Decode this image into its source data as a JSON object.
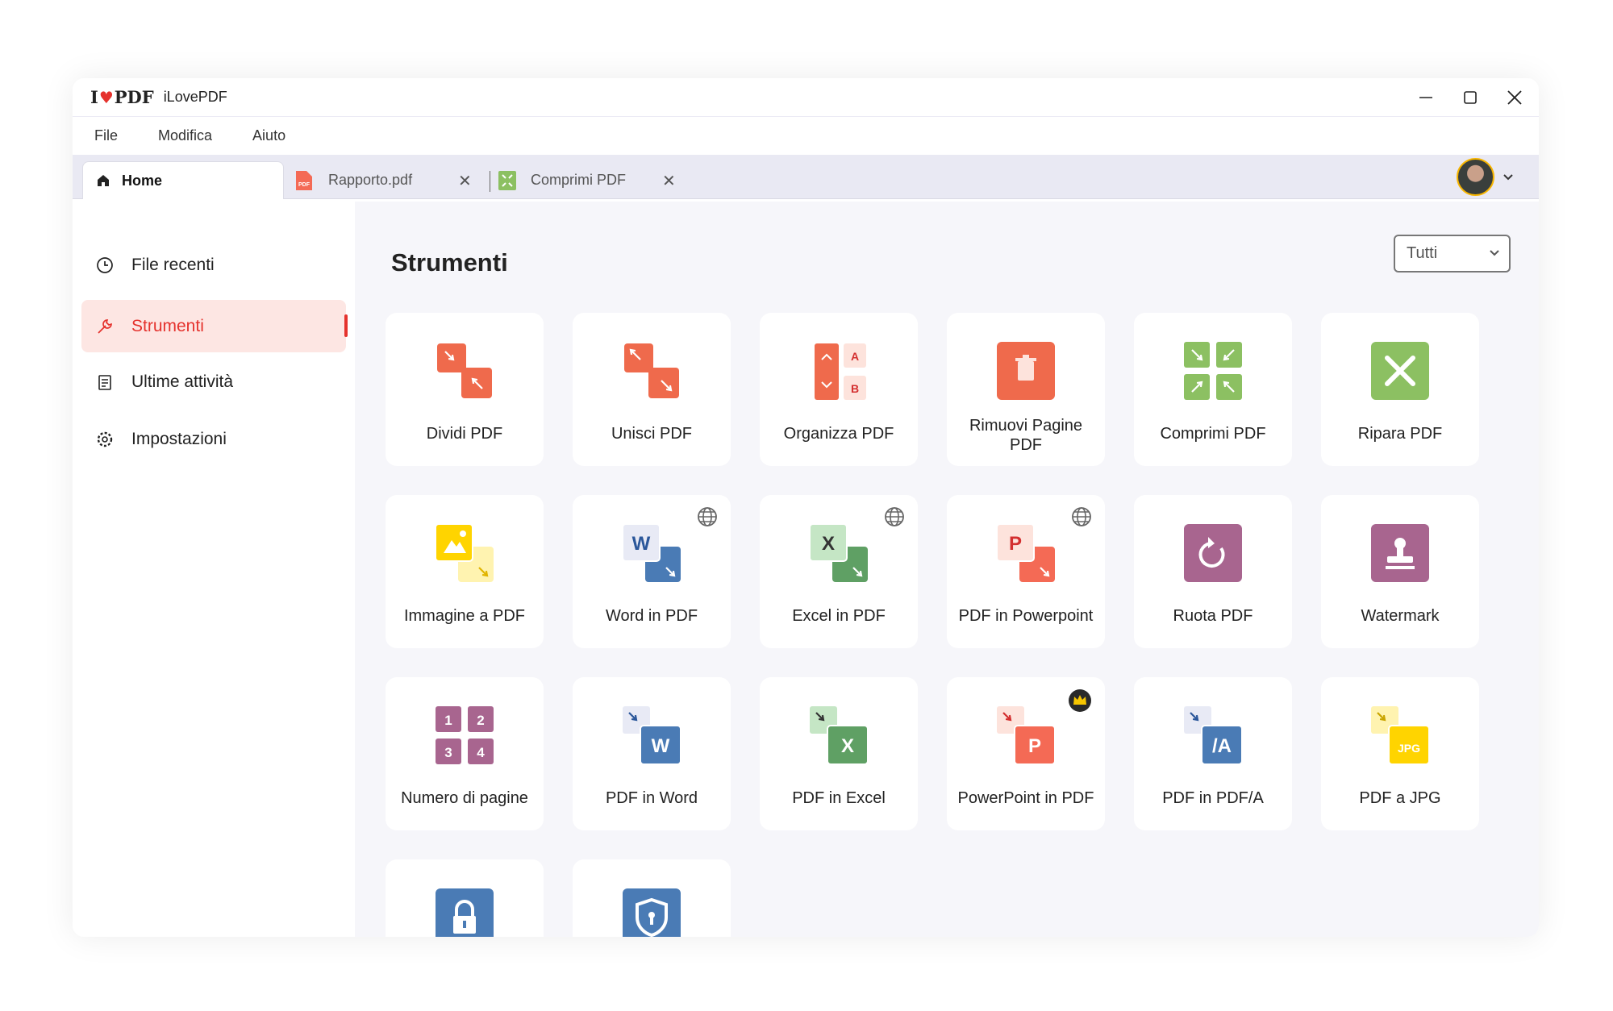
{
  "window": {
    "logo_text": "I♥PDF",
    "app_name": "iLovePDF"
  },
  "menu": [
    "File",
    "Modifica",
    "Aiuto"
  ],
  "tabs": [
    {
      "label": "Home",
      "icon": "home-icon"
    },
    {
      "label": "Rapporto.pdf",
      "icon": "pdf-file-icon"
    },
    {
      "label": "Comprimi PDF",
      "icon": "compress-icon"
    }
  ],
  "sidebar": {
    "items": [
      {
        "label": "File recenti",
        "icon": "clock-icon"
      },
      {
        "label": "Strumenti",
        "icon": "wrench-icon",
        "selected": true
      },
      {
        "label": "Ultime attività",
        "icon": "clipboard-icon"
      },
      {
        "label": "Impostazioni",
        "icon": "gear-icon"
      }
    ]
  },
  "main": {
    "title": "Strumenti",
    "filter": "Tutti"
  },
  "colors": {
    "accent": "#e5322d",
    "red": "#ef6a4c",
    "green": "#8cc062",
    "purple": "#a8658f",
    "blue": "#4a7bb5"
  },
  "tools": [
    {
      "label": "Dividi PDF",
      "icon": "split-icon",
      "kind": "split"
    },
    {
      "label": "Unisci PDF",
      "icon": "merge-icon",
      "kind": "merge"
    },
    {
      "label": "Organizza PDF",
      "icon": "organize-icon",
      "kind": "organize"
    },
    {
      "label": "Rimuovi Pagine PDF",
      "icon": "trash-icon",
      "kind": "trash"
    },
    {
      "label": "Comprimi PDF",
      "icon": "compress-icon",
      "kind": "compress"
    },
    {
      "label": "Ripara PDF",
      "icon": "repair-icon",
      "kind": "repair"
    },
    {
      "label": "Immagine a PDF",
      "icon": "image-to-pdf-icon",
      "kind": "in",
      "light": "#ffd400",
      "dark": "#fff3b0",
      "letter": "img",
      "lc": "#fff"
    },
    {
      "label": "Word in PDF",
      "icon": "word-to-pdf-icon",
      "kind": "in",
      "light": "#e8eaf5",
      "dark": "#4a7bb5",
      "letter": "W",
      "lc": "#2b579a",
      "badge": "globe"
    },
    {
      "label": "Excel in PDF",
      "icon": "excel-to-pdf-icon",
      "kind": "in",
      "light": "#c5e6c5",
      "dark": "#5fa064",
      "letter": "X",
      "lc": "#333",
      "badge": "globe"
    },
    {
      "label": "PDF in Powerpoint",
      "icon": "pdf-to-powerpoint-icon",
      "kind": "in",
      "light": "#fde3dc",
      "dark": "#f46a55",
      "letter": "P",
      "lc": "#d32f2f",
      "badge": "globe"
    },
    {
      "label": "Ruota PDF",
      "icon": "rotate-icon",
      "kind": "rotate"
    },
    {
      "label": "Watermark",
      "icon": "watermark-icon",
      "kind": "stamp"
    },
    {
      "label": "Numero di pagine",
      "icon": "page-numbers-icon",
      "kind": "numbers"
    },
    {
      "label": "PDF in Word",
      "icon": "pdf-to-word-icon",
      "kind": "out",
      "light": "#e8eaf5",
      "dark": "#4a7bb5",
      "letter": "W",
      "ac": "#2b579a"
    },
    {
      "label": "PDF in Excel",
      "icon": "pdf-to-excel-icon",
      "kind": "out",
      "light": "#c5e6c5",
      "dark": "#5fa064",
      "letter": "X",
      "ac": "#333"
    },
    {
      "label": "PowerPoint in PDF",
      "icon": "powerpoint-to-pdf-icon",
      "kind": "out",
      "light": "#fde3dc",
      "dark": "#f46a55",
      "letter": "P",
      "ac": "#d32f2f",
      "badge": "crown"
    },
    {
      "label": "PDF in PDF/A",
      "icon": "pdf-to-pdfa-icon",
      "kind": "out",
      "light": "#e8eaf5",
      "dark": "#4a7bb5",
      "letter": "/A",
      "ac": "#2b579a"
    },
    {
      "label": "PDF a JPG",
      "icon": "pdf-to-jpg-icon",
      "kind": "out",
      "light": "#fff3b0",
      "dark": "#ffd400",
      "letter": "JPG",
      "ac": "#c9a400"
    },
    {
      "label": "",
      "icon": "lock-icon",
      "kind": "lock"
    },
    {
      "label": "",
      "icon": "shield-icon",
      "kind": "shield"
    }
  ]
}
